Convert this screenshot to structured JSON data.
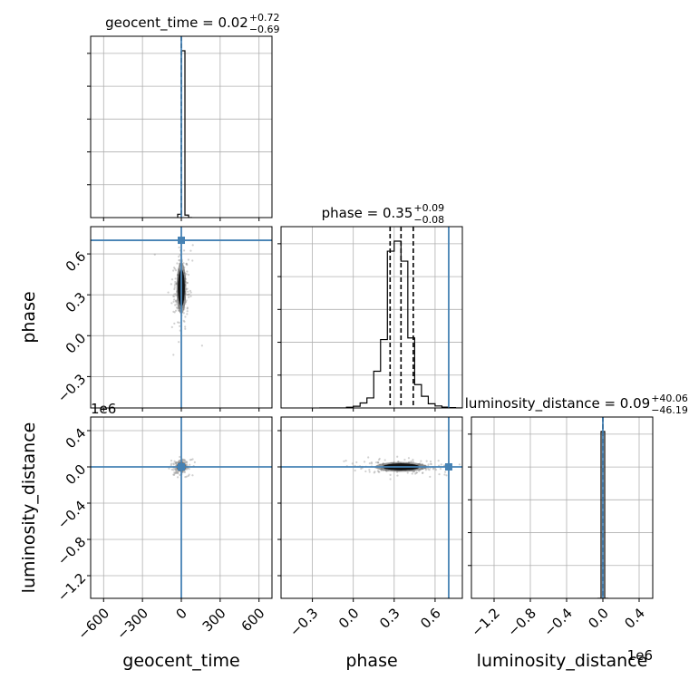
{
  "chart_data": {
    "type": "corner",
    "parameters": [
      "geocent_time",
      "phase",
      "luminosity_distance"
    ],
    "axis_labels": {
      "geocent_time": "geocent_time",
      "phase": "phase",
      "luminosity_distance": "luminosity_distance"
    },
    "titles": {
      "geocent_time": {
        "text": "geocent_time = 0.02",
        "sup": "+0.72",
        "sub": "−0.69"
      },
      "phase": {
        "text": "phase = 0.35",
        "sup": "+0.09",
        "sub": "−0.08"
      },
      "luminosity_distance": {
        "text": "luminosity_distance = 0.09",
        "sup": "+40.06",
        "sub": "−46.19"
      }
    },
    "ranges": {
      "geocent_time": [
        -700,
        700
      ],
      "phase": [
        -0.53,
        0.8
      ],
      "luminosity_distance": [
        -1450000,
        550000
      ]
    },
    "ticks": {
      "geocent_time": {
        "values": [
          -600,
          -300,
          0,
          300,
          600
        ],
        "labels": [
          "−600",
          "−300",
          "0",
          "300",
          "600"
        ]
      },
      "phase": {
        "values": [
          -0.3,
          0.0,
          0.3,
          0.6
        ],
        "labels": [
          "−0.3",
          "0.0",
          "0.3",
          "0.6"
        ]
      },
      "luminosity_distance": {
        "values": [
          -1200000,
          -800000,
          -400000,
          0,
          400000
        ],
        "labels": [
          "−1.2",
          "−0.8",
          "−0.4",
          "0.0",
          "0.4"
        ],
        "offset": "1e6"
      }
    },
    "quantiles": {
      "geocent_time": [
        -0.67,
        0.02,
        0.74
      ],
      "phase": [
        0.27,
        0.35,
        0.44
      ],
      "luminosity_distance": [
        -46.1,
        0.09,
        40.15
      ]
    },
    "truths": {
      "geocent_time": 0,
      "phase": 0.7,
      "luminosity_distance": 0
    },
    "histograms": {
      "geocent_time": {
        "edges": [
          -28,
          0,
          28,
          56,
          84
        ],
        "counts": [
          0.02,
          1.0,
          0.015,
          0.0
        ]
      },
      "phase": {
        "edges": [
          -0.25,
          -0.2,
          -0.15,
          -0.1,
          -0.05,
          0.0,
          0.05,
          0.1,
          0.15,
          0.2,
          0.25,
          0.3,
          0.35,
          0.4,
          0.45,
          0.5,
          0.55,
          0.6,
          0.65,
          0.7,
          0.75,
          0.8
        ],
        "counts": [
          0.0,
          0.0,
          0.0,
          0.0,
          0.004,
          0.01,
          0.03,
          0.06,
          0.22,
          0.41,
          0.94,
          1.0,
          0.88,
          0.42,
          0.14,
          0.07,
          0.025,
          0.012,
          0.005,
          0.002,
          0.0
        ]
      },
      "luminosity_distance": {
        "edges": [
          -60000,
          -20000,
          20000,
          60000
        ],
        "counts": [
          0.0,
          1.0,
          0.0
        ]
      }
    },
    "truth_color": "#4682b4",
    "grid": true,
    "legend": "none"
  }
}
